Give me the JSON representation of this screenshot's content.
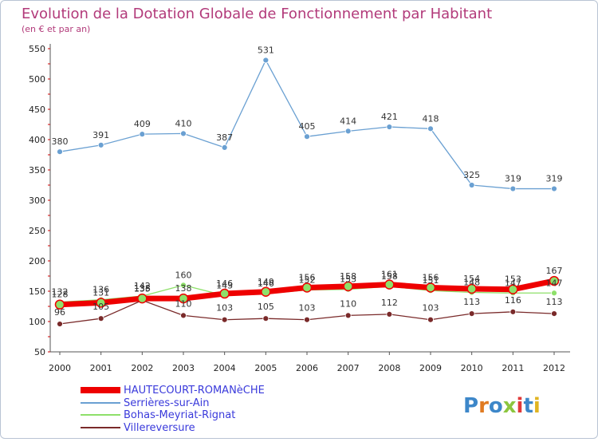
{
  "chart_data": {
    "type": "line",
    "title": "Evolution de la Dotation Globale de Fonctionnement par Habitant",
    "subtitle": "(en € et par an)",
    "x": [
      "2000",
      "2001",
      "2002",
      "2003",
      "2004",
      "2005",
      "2006",
      "2007",
      "2008",
      "2009",
      "2010",
      "2011",
      "2012"
    ],
    "ylim": [
      50,
      550
    ],
    "yticks": [
      50,
      100,
      150,
      200,
      250,
      300,
      350,
      400,
      450,
      500,
      550
    ],
    "grid": false,
    "legend_position": "bottom-left",
    "series": [
      {
        "name": "HAUTECOURT-ROMANèCHE",
        "color": "#ee0000",
        "values": [
          128,
          131,
          138,
          138,
          146,
          149,
          156,
          158,
          161,
          156,
          154,
          153,
          167
        ]
      },
      {
        "name": "Serrières-sur-Ain",
        "color": "#6aa0d2",
        "values": [
          380,
          391,
          409,
          410,
          387,
          531,
          405,
          414,
          421,
          418,
          325,
          319,
          319
        ]
      },
      {
        "name": "Bohas-Meyriat-Rignat",
        "color": "#8ee06a",
        "values": [
          132,
          136,
          142,
          160,
          143,
          146,
          152,
          153,
          158,
          151,
          148,
          147,
          147
        ]
      },
      {
        "name": "Villereversure",
        "color": "#7a2a2a",
        "values": [
          96,
          105,
          135,
          110,
          103,
          105,
          103,
          110,
          112,
          103,
          113,
          116,
          113
        ]
      }
    ]
  },
  "logo": {
    "text": "Proxiti"
  }
}
